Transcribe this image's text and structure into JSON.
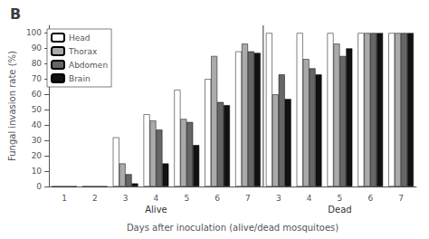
{
  "chart_data": {
    "type": "bar",
    "title": "B",
    "xlabel": "Days after inoculation (alive/dead mosquitoes)",
    "ylabel": "Fungal invasion rate (%)",
    "categories": [
      "1",
      "2",
      "3",
      "4",
      "5",
      "6",
      "7",
      "3",
      "4",
      "5",
      "6",
      "7"
    ],
    "series": [
      {
        "name": "Head",
        "color": "#ffffff",
        "values": [
          0,
          0,
          32,
          47,
          63,
          70,
          88,
          100,
          100,
          100,
          100,
          100
        ]
      },
      {
        "name": "Thorax",
        "color": "#aaaaaa",
        "values": [
          0,
          0,
          15,
          43,
          44,
          85,
          93,
          60,
          83,
          93,
          100,
          100
        ]
      },
      {
        "name": "Abdomen",
        "color": "#666666",
        "values": [
          0,
          0,
          8,
          37,
          42,
          55,
          88,
          73,
          77,
          85,
          100,
          100
        ]
      },
      {
        "name": "Brain",
        "color": "#111111",
        "values": [
          0,
          0,
          2,
          15,
          27,
          53,
          87,
          57,
          73,
          90,
          100,
          100
        ]
      }
    ],
    "annotations": [
      "Alive",
      "Dead"
    ],
    "ylim": [
      0,
      105
    ],
    "yticks": [
      0,
      10,
      20,
      30,
      40,
      50,
      60,
      70,
      80,
      90,
      100
    ],
    "grid": false,
    "legend": "upper left"
  }
}
